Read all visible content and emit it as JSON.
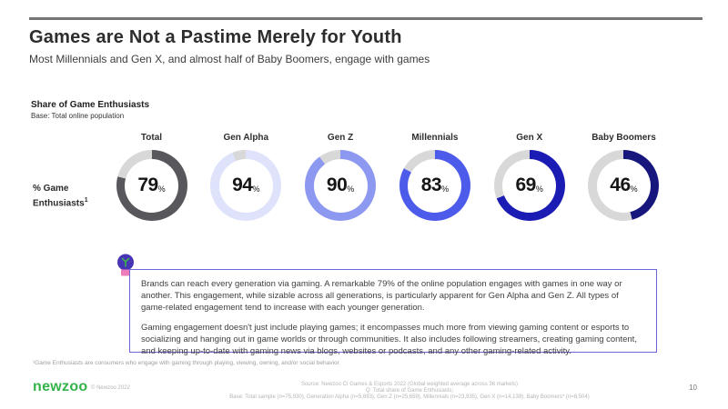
{
  "slide": {
    "title": "Games are Not a Pastime Merely for Youth",
    "subtitle": "Most Millennials and Gen X, and almost half of Baby Boomers, engage with games",
    "page_number": "10"
  },
  "chart": {
    "heading": "Share of Game Enthusiasts",
    "base_note": "Base: Total online population",
    "row_label_line1": "% Game",
    "row_label_line2": "Enthusiasts",
    "row_label_superscript": "1"
  },
  "chart_data": {
    "type": "pie",
    "variant": "donut-multiples",
    "title": "Share of Game Enthusiasts",
    "unit": "%",
    "categories": [
      "Total",
      "Gen Alpha",
      "Gen Z",
      "Millennials",
      "Gen X",
      "Baby Boomers"
    ],
    "values": [
      79,
      94,
      90,
      83,
      69,
      46
    ],
    "value_range": [
      0,
      100
    ],
    "segment_colors": [
      "#58585c",
      "#dee3fb",
      "#8d98f0",
      "#4d5beb",
      "#1b1cb4",
      "#16167d"
    ],
    "track_color": "#d8d8d8",
    "legend": "none",
    "value_labels": "center"
  },
  "callout": {
    "icon": "lightbulb-icon",
    "border_color": "#6e65d8",
    "paragraph1": "Brands can reach every generation via gaming. A remarkable 79% of the online population engages with games in one way or another. This engagement, while sizable across all generations, is particularly apparent for Gen Alpha and Gen Z. All types of game-related engagement tend to increase with each younger generation.",
    "paragraph2": "Gaming engagement doesn't just include playing games; it encompasses much more from viewing gaming content or esports to socializing and hanging out in game worlds or through communities. It also includes following streamers, creating gaming content, and keeping up-to-date with gaming news via blogs, websites or podcasts, and any other gaming-related activity."
  },
  "footnote": "¹Game Enthusiasts are consumers who engage with gaming through playing, viewing, owning, and/or social behavior",
  "footer": {
    "logo_text": "newzoo",
    "copyright": "© Newzoo 2022",
    "source_line1": "Source: Newzoo CI Games & Esports 2022 (Global weighted average across 36 markets)",
    "source_line2": "Q: Total share of Game Enthusiasts;",
    "source_line3": "Base: Total sample (n=75,930), Generation Alpha (n=5,693), Gen Z (n=25,659), Millennials (n=23,935), Gen X (n=14,139), Baby Boomers* (n=8,504)"
  }
}
